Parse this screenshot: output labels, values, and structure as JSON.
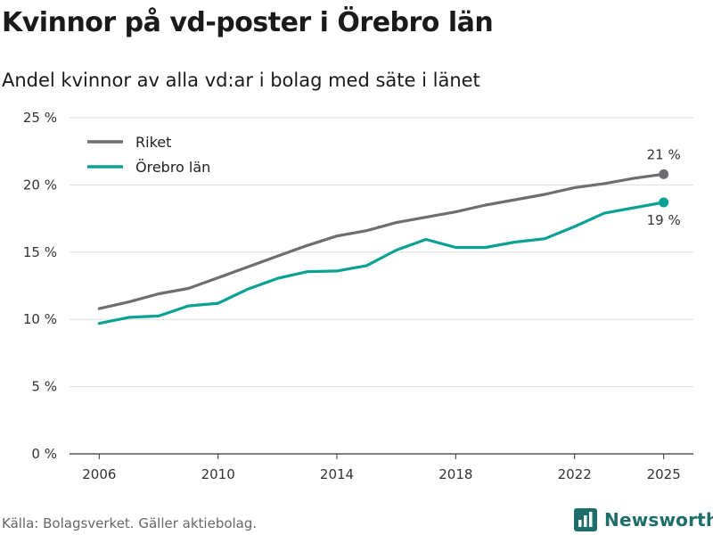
{
  "header": {
    "title": "Kvinnor på vd-poster i Örebro län",
    "subtitle": "Andel kvinnor av alla vd:ar i bolag med säte i länet"
  },
  "footer": {
    "source": "Källa: Bolagsverket. Gäller aktiebolag.",
    "brand": "Newsworthy",
    "brand_icon": "bar-chart-logo-icon"
  },
  "colors": {
    "riket": "#6d6d72",
    "orebro": "#0aa195",
    "grid": "#dddddd",
    "axis": "#333333",
    "brand": "#1d6e6a"
  },
  "chart_data": {
    "type": "line",
    "title": "Kvinnor på vd-poster i Örebro län",
    "subtitle": "Andel kvinnor av alla vd:ar i bolag med säte i länet",
    "xlabel": "",
    "ylabel": "",
    "x": [
      2006,
      2007,
      2008,
      2009,
      2010,
      2011,
      2012,
      2013,
      2014,
      2015,
      2016,
      2017,
      2018,
      2019,
      2020,
      2021,
      2022,
      2023,
      2024,
      2025
    ],
    "x_ticks": [
      "2006",
      "2010",
      "2014",
      "2018",
      "2022",
      "2025"
    ],
    "y_ticks": [
      "0 %",
      "5 %",
      "10 %",
      "15 %",
      "20 %",
      "25 %"
    ],
    "ylim": [
      0,
      25
    ],
    "xlim": [
      2005,
      2026
    ],
    "grid": true,
    "legend_position": "top-left",
    "series": [
      {
        "name": "Riket",
        "color": "#6d6d72",
        "values": [
          10.8,
          11.3,
          11.9,
          12.3,
          13.1,
          13.9,
          14.7,
          15.5,
          16.2,
          16.6,
          17.2,
          17.6,
          18.0,
          18.5,
          18.9,
          19.3,
          19.8,
          20.1,
          20.5,
          20.8
        ],
        "end_label": "21 %"
      },
      {
        "name": "Örebro län",
        "color": "#0aa195",
        "values": [
          9.7,
          10.15,
          10.25,
          11.0,
          11.2,
          12.25,
          13.05,
          13.55,
          13.6,
          14.0,
          15.15,
          15.95,
          15.35,
          15.35,
          15.75,
          16.0,
          16.9,
          17.9,
          18.3,
          18.7
        ],
        "end_label": "19 %"
      }
    ]
  }
}
